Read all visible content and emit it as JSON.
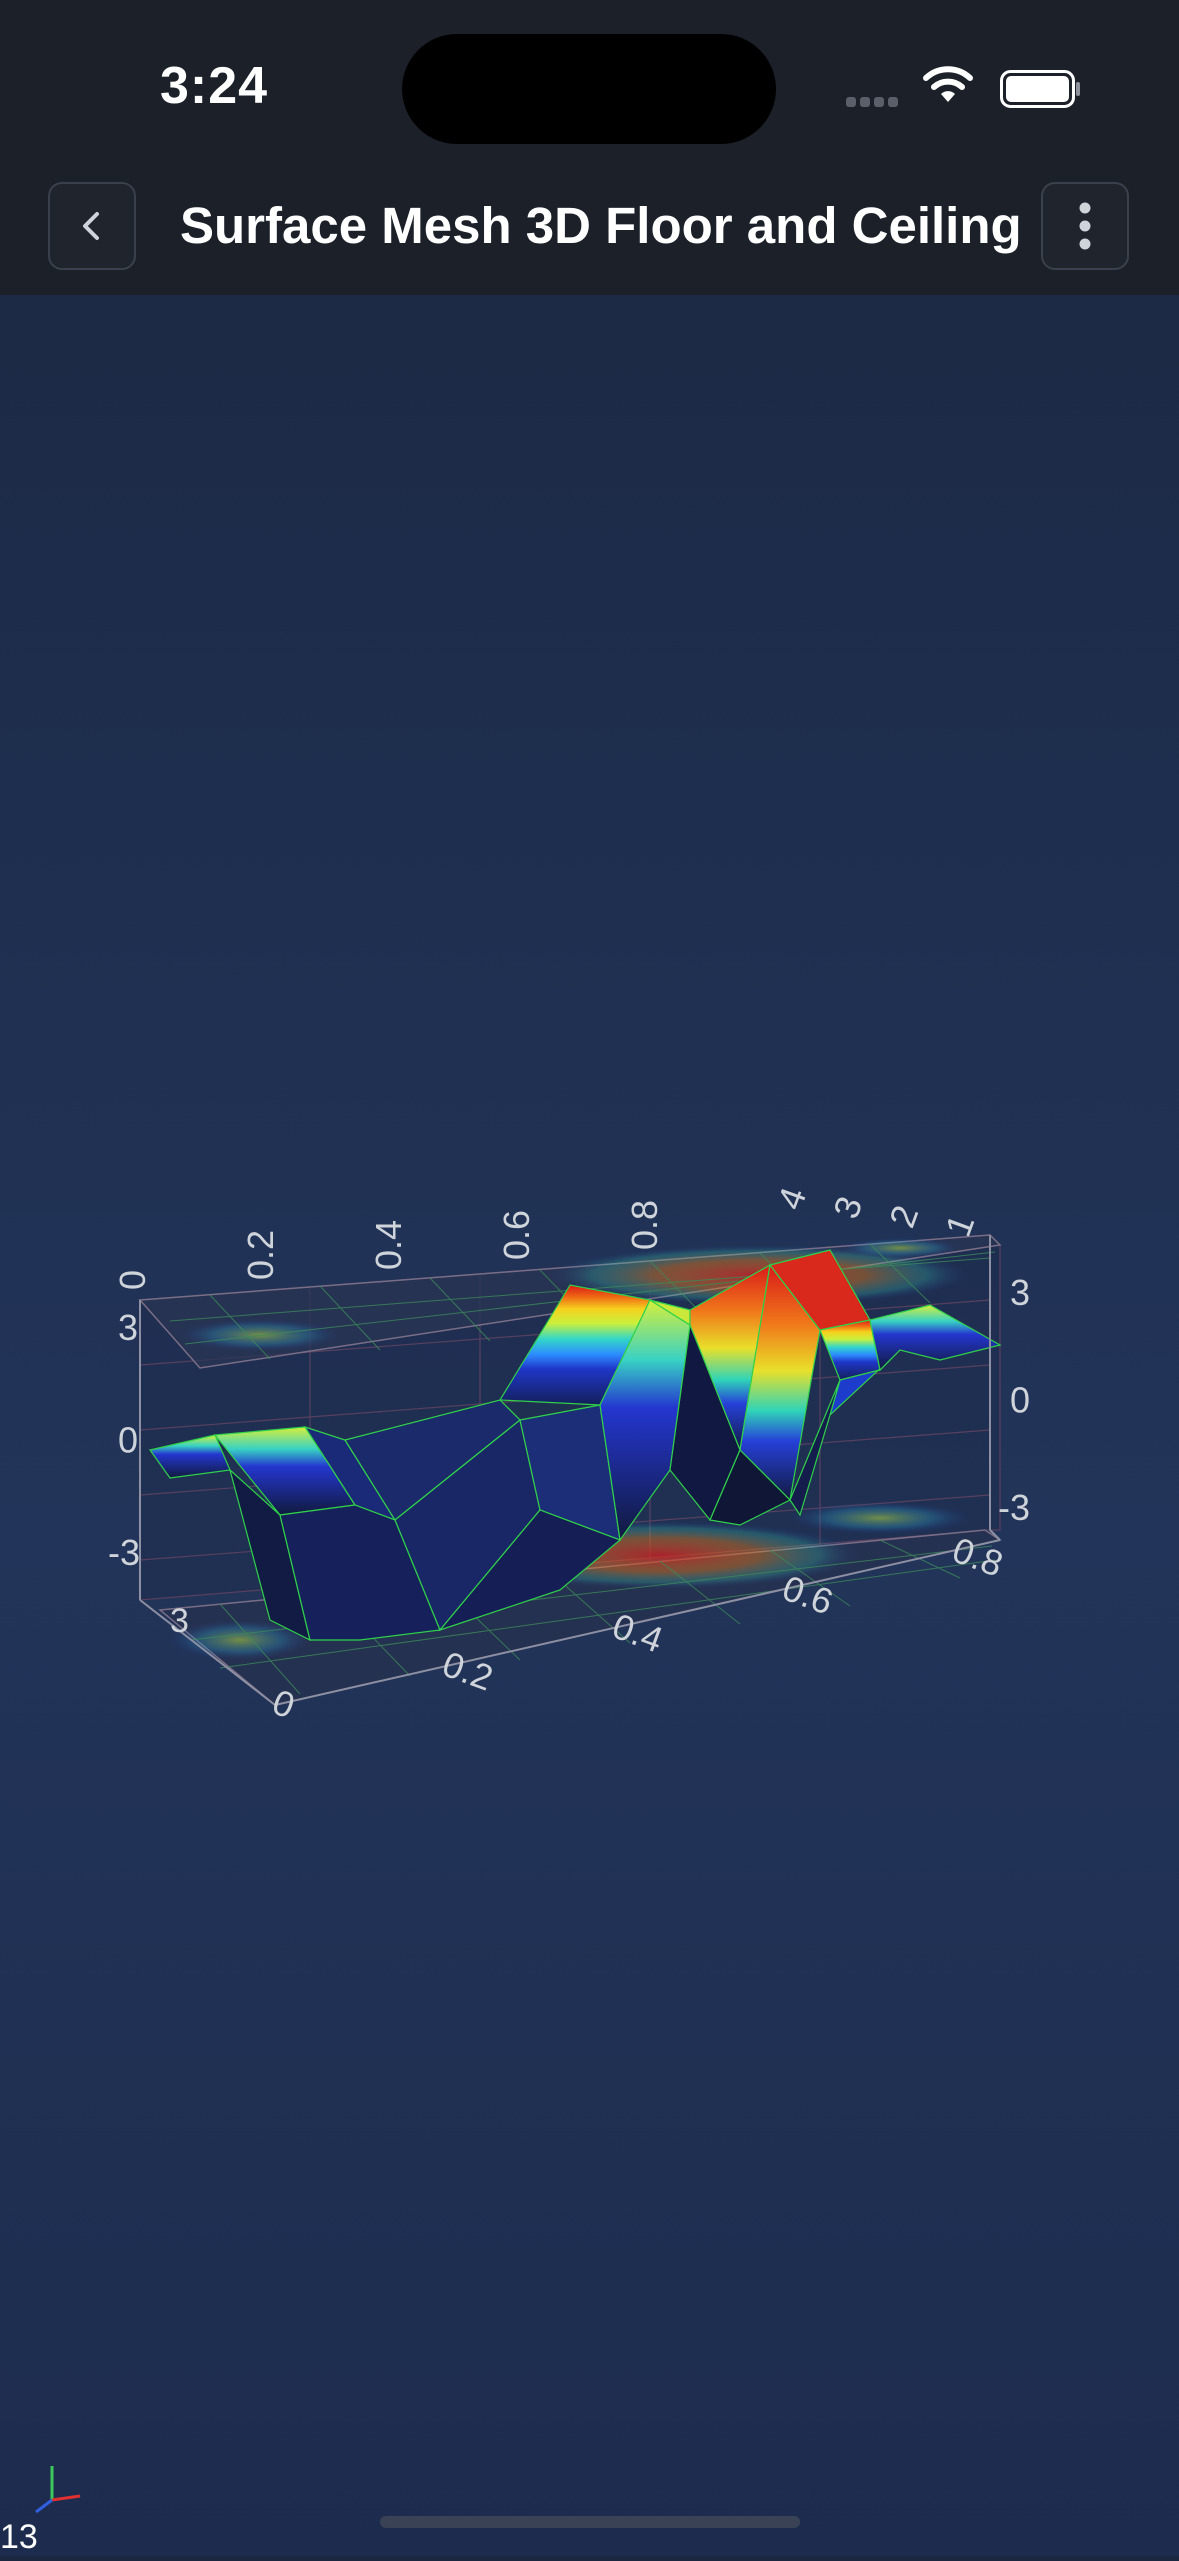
{
  "status_bar": {
    "time": "3:24"
  },
  "header": {
    "title": "Surface Mesh 3D Floor and Ceiling",
    "back_icon": "chevron-left-icon",
    "menu_icon": "vertical-dots-icon"
  },
  "chart_data": {
    "type": "surface3d",
    "title": "Surface Mesh 3D Floor and Ceiling",
    "x_ticks": [
      "0",
      "0.2",
      "0.4",
      "0.6",
      "0.8"
    ],
    "y_ticks": [
      "-3",
      "0",
      "3"
    ],
    "z_ticks": [
      "1",
      "2",
      "3",
      "4"
    ],
    "floor_x_ticks": [
      "0",
      "0.2",
      "0.4",
      "0.6",
      "0.8"
    ],
    "floor_z_label": "3",
    "colormap": [
      "#1c2a7a",
      "#2233cc",
      "#2d8cff",
      "#33d6c8",
      "#c9f03c",
      "#f5d21e",
      "#f06a14",
      "#d91a1a"
    ],
    "ylim": [
      -3,
      3
    ],
    "xlim": [
      0,
      1
    ],
    "floor_projection": true,
    "ceiling_projection": true,
    "wireframe_color": "#2fd24a"
  },
  "colors": {
    "background_top": "#1b2740",
    "background_bottom": "#1d2c4e",
    "header_bg": "#1b2029",
    "axis_text": "#cfd3da"
  },
  "footer": {
    "fps": "13"
  }
}
